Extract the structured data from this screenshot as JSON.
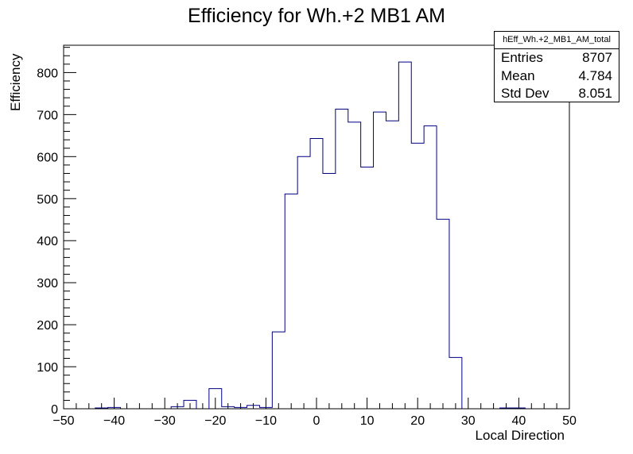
{
  "chart_data": {
    "type": "bar",
    "title": "Efficiency for Wh.+2 MB1 AM",
    "xlabel": "Local Direction",
    "ylabel": "Efficiency",
    "xlim": [
      -50,
      50
    ],
    "ylim": [
      0,
      865
    ],
    "bin_width": 2.5,
    "x_ticks": [
      -50,
      -40,
      -30,
      -20,
      -10,
      0,
      10,
      20,
      30,
      40,
      50
    ],
    "y_ticks": [
      0,
      100,
      200,
      300,
      400,
      500,
      600,
      700,
      800
    ],
    "line_color": "#000080",
    "bins": [
      {
        "x": -42.5,
        "y": 2
      },
      {
        "x": -40.0,
        "y": 3
      },
      {
        "x": -27.5,
        "y": 5
      },
      {
        "x": -25.0,
        "y": 20
      },
      {
        "x": -20.0,
        "y": 48
      },
      {
        "x": -17.5,
        "y": 5
      },
      {
        "x": -15.0,
        "y": 3
      },
      {
        "x": -12.5,
        "y": 8
      },
      {
        "x": -10.0,
        "y": 3
      },
      {
        "x": -7.5,
        "y": 183
      },
      {
        "x": -5.0,
        "y": 511
      },
      {
        "x": -2.5,
        "y": 600
      },
      {
        "x": 0.0,
        "y": 643
      },
      {
        "x": 2.5,
        "y": 560
      },
      {
        "x": 5.0,
        "y": 713
      },
      {
        "x": 7.5,
        "y": 682
      },
      {
        "x": 10.0,
        "y": 575
      },
      {
        "x": 12.5,
        "y": 706
      },
      {
        "x": 15.0,
        "y": 685
      },
      {
        "x": 17.5,
        "y": 825
      },
      {
        "x": 20.0,
        "y": 632
      },
      {
        "x": 22.5,
        "y": 673
      },
      {
        "x": 25.0,
        "y": 451
      },
      {
        "x": 27.5,
        "y": 122
      },
      {
        "x": 37.5,
        "y": 2
      },
      {
        "x": 40.0,
        "y": 2
      }
    ]
  },
  "stats": {
    "name": "hEff_Wh.+2_MB1_AM_total",
    "rows": [
      {
        "label": "Entries",
        "value": "8707"
      },
      {
        "label": "Mean",
        "value": "4.784"
      },
      {
        "label": "Std Dev",
        "value": "8.051"
      }
    ]
  }
}
